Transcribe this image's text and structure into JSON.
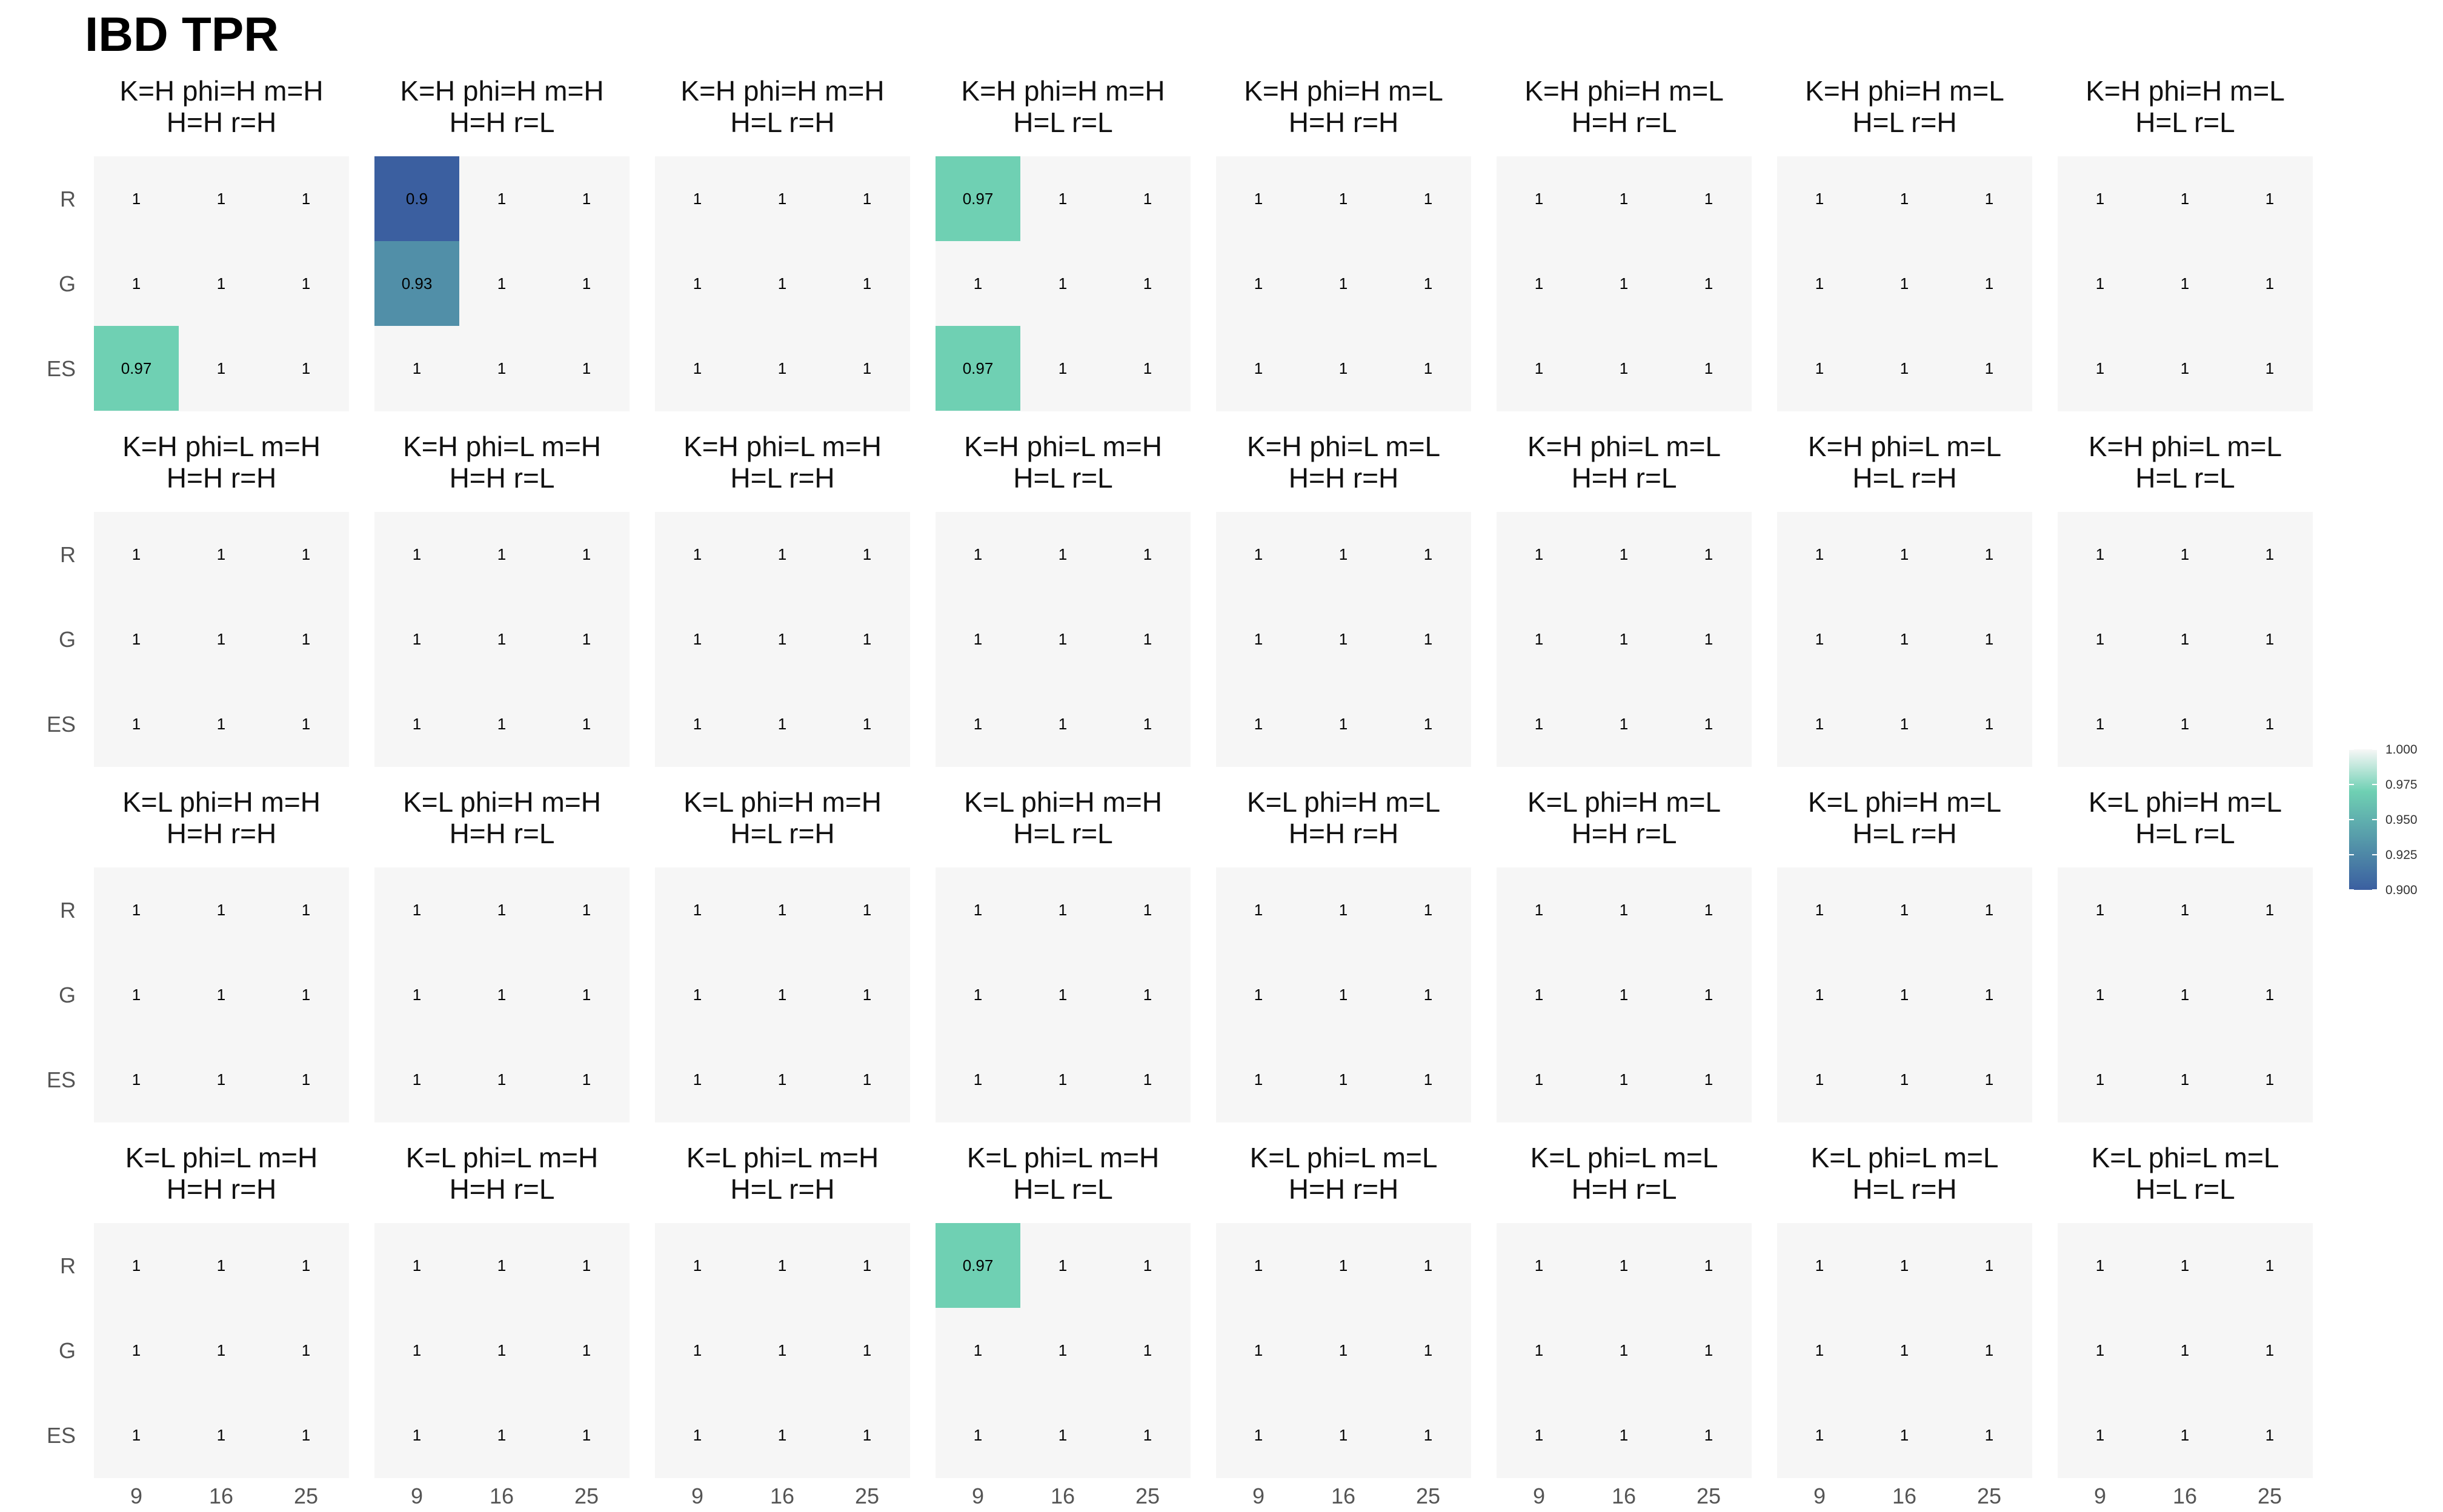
{
  "chart_data": {
    "type": "heatmap",
    "title": "IBD TPR",
    "x_categories": [
      "9",
      "16",
      "25"
    ],
    "y_categories": [
      "R",
      "G",
      "ES"
    ],
    "panel_layout": {
      "rows": 4,
      "cols": 8
    },
    "color_scale": {
      "min": 0.9,
      "max": 1.0,
      "low_color": "#3b5fa0",
      "mid_color": "#6fd0b3",
      "high_color": "#f7f7f7",
      "background_color": "#f6f6f6",
      "legend_ticks": [
        "1.000",
        "0.975",
        "0.950",
        "0.925",
        "0.900"
      ]
    },
    "panels": [
      {
        "title": [
          "K=H phi=H m=H",
          "H=H r=H"
        ],
        "values": [
          [
            "1",
            "1",
            "1"
          ],
          [
            "1",
            "1",
            "1"
          ],
          [
            "0.97",
            "1",
            "1"
          ]
        ]
      },
      {
        "title": [
          "K=H phi=H m=H",
          "H=H r=L"
        ],
        "values": [
          [
            "0.9",
            "1",
            "1"
          ],
          [
            "0.93",
            "1",
            "1"
          ],
          [
            "1",
            "1",
            "1"
          ]
        ]
      },
      {
        "title": [
          "K=H phi=H m=H",
          "H=L r=H"
        ],
        "values": [
          [
            "1",
            "1",
            "1"
          ],
          [
            "1",
            "1",
            "1"
          ],
          [
            "1",
            "1",
            "1"
          ]
        ]
      },
      {
        "title": [
          "K=H phi=H m=H",
          "H=L r=L"
        ],
        "values": [
          [
            "0.97",
            "1",
            "1"
          ],
          [
            "1",
            "1",
            "1"
          ],
          [
            "0.97",
            "1",
            "1"
          ]
        ]
      },
      {
        "title": [
          "K=H phi=H m=L",
          "H=H r=H"
        ],
        "values": [
          [
            "1",
            "1",
            "1"
          ],
          [
            "1",
            "1",
            "1"
          ],
          [
            "1",
            "1",
            "1"
          ]
        ]
      },
      {
        "title": [
          "K=H phi=H m=L",
          "H=H r=L"
        ],
        "values": [
          [
            "1",
            "1",
            "1"
          ],
          [
            "1",
            "1",
            "1"
          ],
          [
            "1",
            "1",
            "1"
          ]
        ]
      },
      {
        "title": [
          "K=H phi=H m=L",
          "H=L r=H"
        ],
        "values": [
          [
            "1",
            "1",
            "1"
          ],
          [
            "1",
            "1",
            "1"
          ],
          [
            "1",
            "1",
            "1"
          ]
        ]
      },
      {
        "title": [
          "K=H phi=H m=L",
          "H=L r=L"
        ],
        "values": [
          [
            "1",
            "1",
            "1"
          ],
          [
            "1",
            "1",
            "1"
          ],
          [
            "1",
            "1",
            "1"
          ]
        ]
      },
      {
        "title": [
          "K=H phi=L m=H",
          "H=H r=H"
        ],
        "values": [
          [
            "1",
            "1",
            "1"
          ],
          [
            "1",
            "1",
            "1"
          ],
          [
            "1",
            "1",
            "1"
          ]
        ]
      },
      {
        "title": [
          "K=H phi=L m=H",
          "H=H r=L"
        ],
        "values": [
          [
            "1",
            "1",
            "1"
          ],
          [
            "1",
            "1",
            "1"
          ],
          [
            "1",
            "1",
            "1"
          ]
        ]
      },
      {
        "title": [
          "K=H phi=L m=H",
          "H=L r=H"
        ],
        "values": [
          [
            "1",
            "1",
            "1"
          ],
          [
            "1",
            "1",
            "1"
          ],
          [
            "1",
            "1",
            "1"
          ]
        ]
      },
      {
        "title": [
          "K=H phi=L m=H",
          "H=L r=L"
        ],
        "values": [
          [
            "1",
            "1",
            "1"
          ],
          [
            "1",
            "1",
            "1"
          ],
          [
            "1",
            "1",
            "1"
          ]
        ]
      },
      {
        "title": [
          "K=H phi=L m=L",
          "H=H r=H"
        ],
        "values": [
          [
            "1",
            "1",
            "1"
          ],
          [
            "1",
            "1",
            "1"
          ],
          [
            "1",
            "1",
            "1"
          ]
        ]
      },
      {
        "title": [
          "K=H phi=L m=L",
          "H=H r=L"
        ],
        "values": [
          [
            "1",
            "1",
            "1"
          ],
          [
            "1",
            "1",
            "1"
          ],
          [
            "1",
            "1",
            "1"
          ]
        ]
      },
      {
        "title": [
          "K=H phi=L m=L",
          "H=L r=H"
        ],
        "values": [
          [
            "1",
            "1",
            "1"
          ],
          [
            "1",
            "1",
            "1"
          ],
          [
            "1",
            "1",
            "1"
          ]
        ]
      },
      {
        "title": [
          "K=H phi=L m=L",
          "H=L r=L"
        ],
        "values": [
          [
            "1",
            "1",
            "1"
          ],
          [
            "1",
            "1",
            "1"
          ],
          [
            "1",
            "1",
            "1"
          ]
        ]
      },
      {
        "title": [
          "K=L phi=H m=H",
          "H=H r=H"
        ],
        "values": [
          [
            "1",
            "1",
            "1"
          ],
          [
            "1",
            "1",
            "1"
          ],
          [
            "1",
            "1",
            "1"
          ]
        ]
      },
      {
        "title": [
          "K=L phi=H m=H",
          "H=H r=L"
        ],
        "values": [
          [
            "1",
            "1",
            "1"
          ],
          [
            "1",
            "1",
            "1"
          ],
          [
            "1",
            "1",
            "1"
          ]
        ]
      },
      {
        "title": [
          "K=L phi=H m=H",
          "H=L r=H"
        ],
        "values": [
          [
            "1",
            "1",
            "1"
          ],
          [
            "1",
            "1",
            "1"
          ],
          [
            "1",
            "1",
            "1"
          ]
        ]
      },
      {
        "title": [
          "K=L phi=H m=H",
          "H=L r=L"
        ],
        "values": [
          [
            "1",
            "1",
            "1"
          ],
          [
            "1",
            "1",
            "1"
          ],
          [
            "1",
            "1",
            "1"
          ]
        ]
      },
      {
        "title": [
          "K=L phi=H m=L",
          "H=H r=H"
        ],
        "values": [
          [
            "1",
            "1",
            "1"
          ],
          [
            "1",
            "1",
            "1"
          ],
          [
            "1",
            "1",
            "1"
          ]
        ]
      },
      {
        "title": [
          "K=L phi=H m=L",
          "H=H r=L"
        ],
        "values": [
          [
            "1",
            "1",
            "1"
          ],
          [
            "1",
            "1",
            "1"
          ],
          [
            "1",
            "1",
            "1"
          ]
        ]
      },
      {
        "title": [
          "K=L phi=H m=L",
          "H=L r=H"
        ],
        "values": [
          [
            "1",
            "1",
            "1"
          ],
          [
            "1",
            "1",
            "1"
          ],
          [
            "1",
            "1",
            "1"
          ]
        ]
      },
      {
        "title": [
          "K=L phi=H m=L",
          "H=L r=L"
        ],
        "values": [
          [
            "1",
            "1",
            "1"
          ],
          [
            "1",
            "1",
            "1"
          ],
          [
            "1",
            "1",
            "1"
          ]
        ]
      },
      {
        "title": [
          "K=L phi=L m=H",
          "H=H r=H"
        ],
        "values": [
          [
            "1",
            "1",
            "1"
          ],
          [
            "1",
            "1",
            "1"
          ],
          [
            "1",
            "1",
            "1"
          ]
        ]
      },
      {
        "title": [
          "K=L phi=L m=H",
          "H=H r=L"
        ],
        "values": [
          [
            "1",
            "1",
            "1"
          ],
          [
            "1",
            "1",
            "1"
          ],
          [
            "1",
            "1",
            "1"
          ]
        ]
      },
      {
        "title": [
          "K=L phi=L m=H",
          "H=L r=H"
        ],
        "values": [
          [
            "1",
            "1",
            "1"
          ],
          [
            "1",
            "1",
            "1"
          ],
          [
            "1",
            "1",
            "1"
          ]
        ]
      },
      {
        "title": [
          "K=L phi=L m=H",
          "H=L r=L"
        ],
        "values": [
          [
            "0.97",
            "1",
            "1"
          ],
          [
            "1",
            "1",
            "1"
          ],
          [
            "1",
            "1",
            "1"
          ]
        ]
      },
      {
        "title": [
          "K=L phi=L m=L",
          "H=H r=H"
        ],
        "values": [
          [
            "1",
            "1",
            "1"
          ],
          [
            "1",
            "1",
            "1"
          ],
          [
            "1",
            "1",
            "1"
          ]
        ]
      },
      {
        "title": [
          "K=L phi=L m=L",
          "H=H r=L"
        ],
        "values": [
          [
            "1",
            "1",
            "1"
          ],
          [
            "1",
            "1",
            "1"
          ],
          [
            "1",
            "1",
            "1"
          ]
        ]
      },
      {
        "title": [
          "K=L phi=L m=L",
          "H=L r=H"
        ],
        "values": [
          [
            "1",
            "1",
            "1"
          ],
          [
            "1",
            "1",
            "1"
          ],
          [
            "1",
            "1",
            "1"
          ]
        ]
      },
      {
        "title": [
          "K=L phi=L m=L",
          "H=L r=L"
        ],
        "values": [
          [
            "1",
            "1",
            "1"
          ],
          [
            "1",
            "1",
            "1"
          ],
          [
            "1",
            "1",
            "1"
          ]
        ]
      }
    ]
  }
}
